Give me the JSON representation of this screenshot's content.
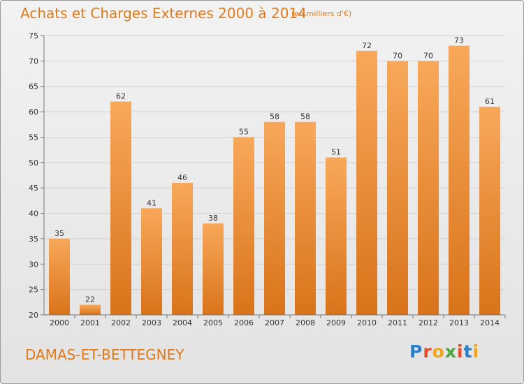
{
  "header": {
    "title": "Achats et Charges Externes 2000 à 2014",
    "subtitle": "(en milliers d'€)"
  },
  "footer": {
    "commune": "DAMAS-ET-BETTEGNEY",
    "logo_text": "Proxiti",
    "logo_colors": [
      "#2c7fc4",
      "#e8492b",
      "#f2a41c",
      "#4aa83d",
      "#e8492b",
      "#2c7fc4",
      "#f2a41c"
    ]
  },
  "chart_data": {
    "type": "bar",
    "categories": [
      "2000",
      "2001",
      "2002",
      "2003",
      "2004",
      "2005",
      "2006",
      "2007",
      "2008",
      "2009",
      "2010",
      "2011",
      "2012",
      "2013",
      "2014"
    ],
    "values": [
      35,
      22,
      62,
      41,
      46,
      38,
      55,
      58,
      58,
      51,
      72,
      70,
      70,
      73,
      61
    ],
    "ylim": [
      20,
      75
    ],
    "yticks": [
      20,
      25,
      30,
      35,
      40,
      45,
      50,
      55,
      60,
      65,
      70,
      75
    ],
    "grid": true,
    "bar_color": "#f0902e"
  }
}
